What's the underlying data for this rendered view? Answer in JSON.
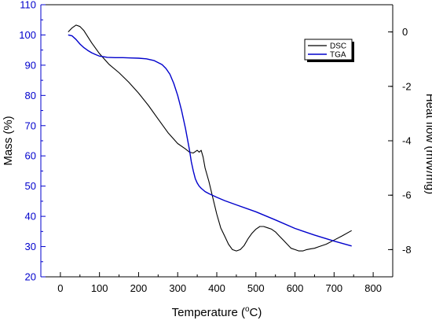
{
  "chart_data": {
    "type": "line",
    "xlabel": "Temperature (",
    "xlabel_sup": "o",
    "xlabel_tail": "C)",
    "ylabel_left": "Mass (%)",
    "ylabel_right": "Heat flow (mW/mg)",
    "xlim": [
      -50,
      850
    ],
    "ylim_left": [
      20,
      110
    ],
    "ylim_right": [
      -9,
      1
    ],
    "x_ticks": [
      "0",
      "100",
      "200",
      "300",
      "400",
      "500",
      "600",
      "700",
      "800"
    ],
    "y_left_ticks": [
      "20",
      "30",
      "40",
      "50",
      "60",
      "70",
      "80",
      "90",
      "100",
      "110"
    ],
    "y_right_ticks": [
      "0",
      "-2",
      "-4",
      "-6",
      "-8"
    ],
    "legend_position": "top-right",
    "grid": false,
    "series": [
      {
        "name": "DSC",
        "axis": "right",
        "color": "#000000",
        "x": [
          20,
          30,
          40,
          50,
          60,
          80,
          100,
          125,
          150,
          175,
          200,
          225,
          250,
          275,
          300,
          320,
          330,
          340,
          350,
          355,
          360,
          365,
          370,
          380,
          390,
          400,
          410,
          420,
          430,
          440,
          450,
          460,
          470,
          480,
          490,
          500,
          510,
          520,
          530,
          540,
          550,
          560,
          570,
          580,
          590,
          600,
          610,
          620,
          630,
          640,
          650,
          660,
          680,
          700,
          720,
          745
        ],
        "y": [
          0.0,
          0.15,
          0.25,
          0.2,
          0.05,
          -0.4,
          -0.8,
          -1.2,
          -1.5,
          -1.85,
          -2.25,
          -2.7,
          -3.2,
          -3.7,
          -4.1,
          -4.3,
          -4.42,
          -4.45,
          -4.35,
          -4.42,
          -4.35,
          -4.6,
          -5.0,
          -5.5,
          -6.1,
          -6.7,
          -7.2,
          -7.5,
          -7.8,
          -8.0,
          -8.05,
          -8.0,
          -7.85,
          -7.6,
          -7.4,
          -7.25,
          -7.15,
          -7.15,
          -7.2,
          -7.25,
          -7.35,
          -7.5,
          -7.65,
          -7.8,
          -7.95,
          -8.0,
          -8.05,
          -8.05,
          -8.0,
          -7.97,
          -7.95,
          -7.9,
          -7.8,
          -7.65,
          -7.5,
          -7.3
        ]
      },
      {
        "name": "TGA",
        "axis": "left",
        "color": "#0000cc",
        "x": [
          20,
          30,
          40,
          50,
          60,
          70,
          80,
          90,
          100,
          110,
          120,
          140,
          160,
          180,
          200,
          220,
          240,
          260,
          270,
          280,
          290,
          300,
          310,
          320,
          330,
          335,
          340,
          345,
          350,
          355,
          360,
          370,
          380,
          400,
          420,
          450,
          500,
          550,
          600,
          650,
          700,
          745
        ],
        "y": [
          100,
          99.7,
          98.5,
          97,
          95.8,
          94.9,
          94.1,
          93.5,
          93.0,
          92.8,
          92.6,
          92.5,
          92.5,
          92.4,
          92.3,
          92.1,
          91.5,
          90.2,
          88.9,
          87.0,
          84.0,
          80.0,
          75.0,
          69.0,
          62.0,
          58.0,
          55.0,
          52.5,
          51.0,
          50.0,
          49.3,
          48.2,
          47.5,
          46.3,
          45.2,
          43.8,
          41.5,
          38.8,
          36.0,
          33.8,
          31.8,
          30.2
        ]
      }
    ]
  }
}
